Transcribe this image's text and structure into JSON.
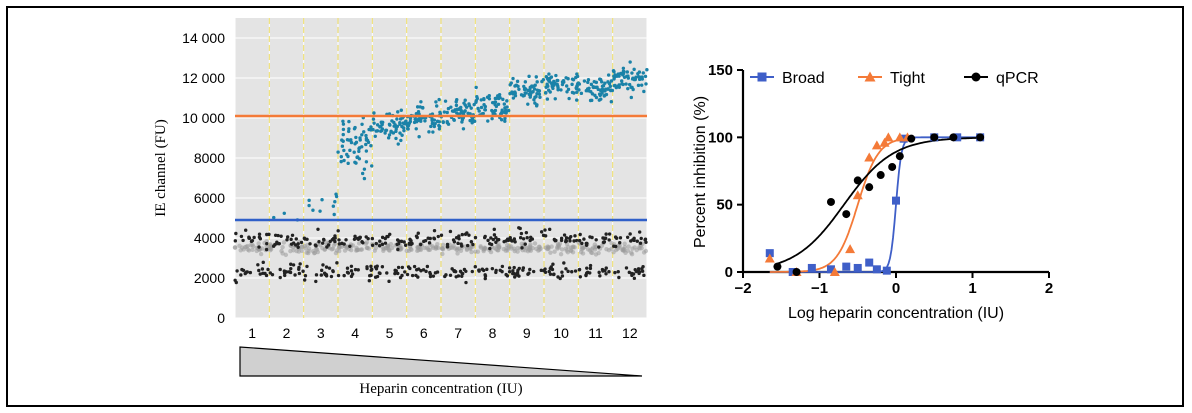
{
  "chart_data": [
    {
      "type": "scatter",
      "title": "",
      "xlabel": "",
      "ylabel": "IE channel (FU)",
      "ylim": [
        0,
        15000
      ],
      "yticks": [
        0,
        2000,
        4000,
        6000,
        8000,
        10000,
        12000,
        14000
      ],
      "ytick_labels": [
        "0",
        "2000",
        "4000",
        "6000",
        "8000",
        "10 000",
        "12 000",
        "14 000"
      ],
      "categories": [
        "1",
        "2",
        "3",
        "4",
        "5",
        "6",
        "7",
        "8",
        "9",
        "10",
        "11",
        "12"
      ],
      "grid": true,
      "thresholds": [
        {
          "value": 10100,
          "color": "#f47a38"
        },
        {
          "value": 4900,
          "color": "#2f5fc8"
        }
      ],
      "series": [
        {
          "color": "#1a82a8",
          "approx_level": [
            null,
            5300,
            5600,
            8600,
            9600,
            10000,
            10200,
            10600,
            11400,
            11600,
            11500,
            12000
          ]
        },
        {
          "color": "#222222",
          "approx_level": [
            3500,
            3500,
            3500,
            3500,
            3500,
            3500,
            3500,
            3500,
            3500,
            3500,
            3500,
            3500
          ]
        }
      ],
      "wedge_label": "Heparin concentration (IU)"
    },
    {
      "type": "line",
      "title": "",
      "xlabel": "Log heparin concentration (IU)",
      "ylabel": "Percent inhibition (%)",
      "xlim": [
        -2,
        2
      ],
      "ylim": [
        0,
        150
      ],
      "xticks": [
        -2,
        -1,
        0,
        1,
        2
      ],
      "yticks": [
        0,
        50,
        100,
        150
      ],
      "xtick_labels": [
        "−2",
        "−1",
        "0",
        "1",
        "2"
      ],
      "ytick_labels": [
        "0",
        "50",
        "100",
        "150"
      ],
      "legend_position": "top",
      "series": [
        {
          "name": "Broad",
          "color": "#3f5fc8",
          "marker": "square",
          "x": [
            -1.65,
            -1.35,
            -1.1,
            -0.85,
            -0.65,
            -0.5,
            -0.35,
            -0.25,
            -0.12,
            0.0,
            0.1,
            0.5,
            0.8,
            1.1
          ],
          "y": [
            14,
            0,
            3,
            2,
            4,
            3,
            7,
            2,
            1,
            53,
            99,
            100,
            100,
            100
          ],
          "fit": {
            "ec50_log": 0.0,
            "hill": 12
          }
        },
        {
          "name": "Tight",
          "color": "#f47a38",
          "marker": "triangle",
          "x": [
            -1.65,
            -1.3,
            -0.8,
            -0.6,
            -0.5,
            -0.35,
            -0.25,
            -0.15,
            -0.1,
            0.05,
            0.15
          ],
          "y": [
            10,
            0,
            0,
            17,
            57,
            85,
            94,
            96,
            100,
            100,
            100
          ],
          "fit": {
            "ec50_log": -0.5,
            "hill": 3.2
          }
        },
        {
          "name": "qPCR",
          "color": "#000000",
          "marker": "circle",
          "x": [
            -1.55,
            -1.3,
            -0.85,
            -0.65,
            -0.5,
            -0.35,
            -0.2,
            -0.05,
            0.05,
            0.2,
            0.5,
            0.75,
            1.1
          ],
          "y": [
            4,
            0,
            52,
            43,
            68,
            63,
            72,
            78,
            86,
            99,
            100,
            100,
            100
          ],
          "fit": {
            "ec50_log": -0.68,
            "hill": 1.35
          }
        }
      ]
    }
  ]
}
